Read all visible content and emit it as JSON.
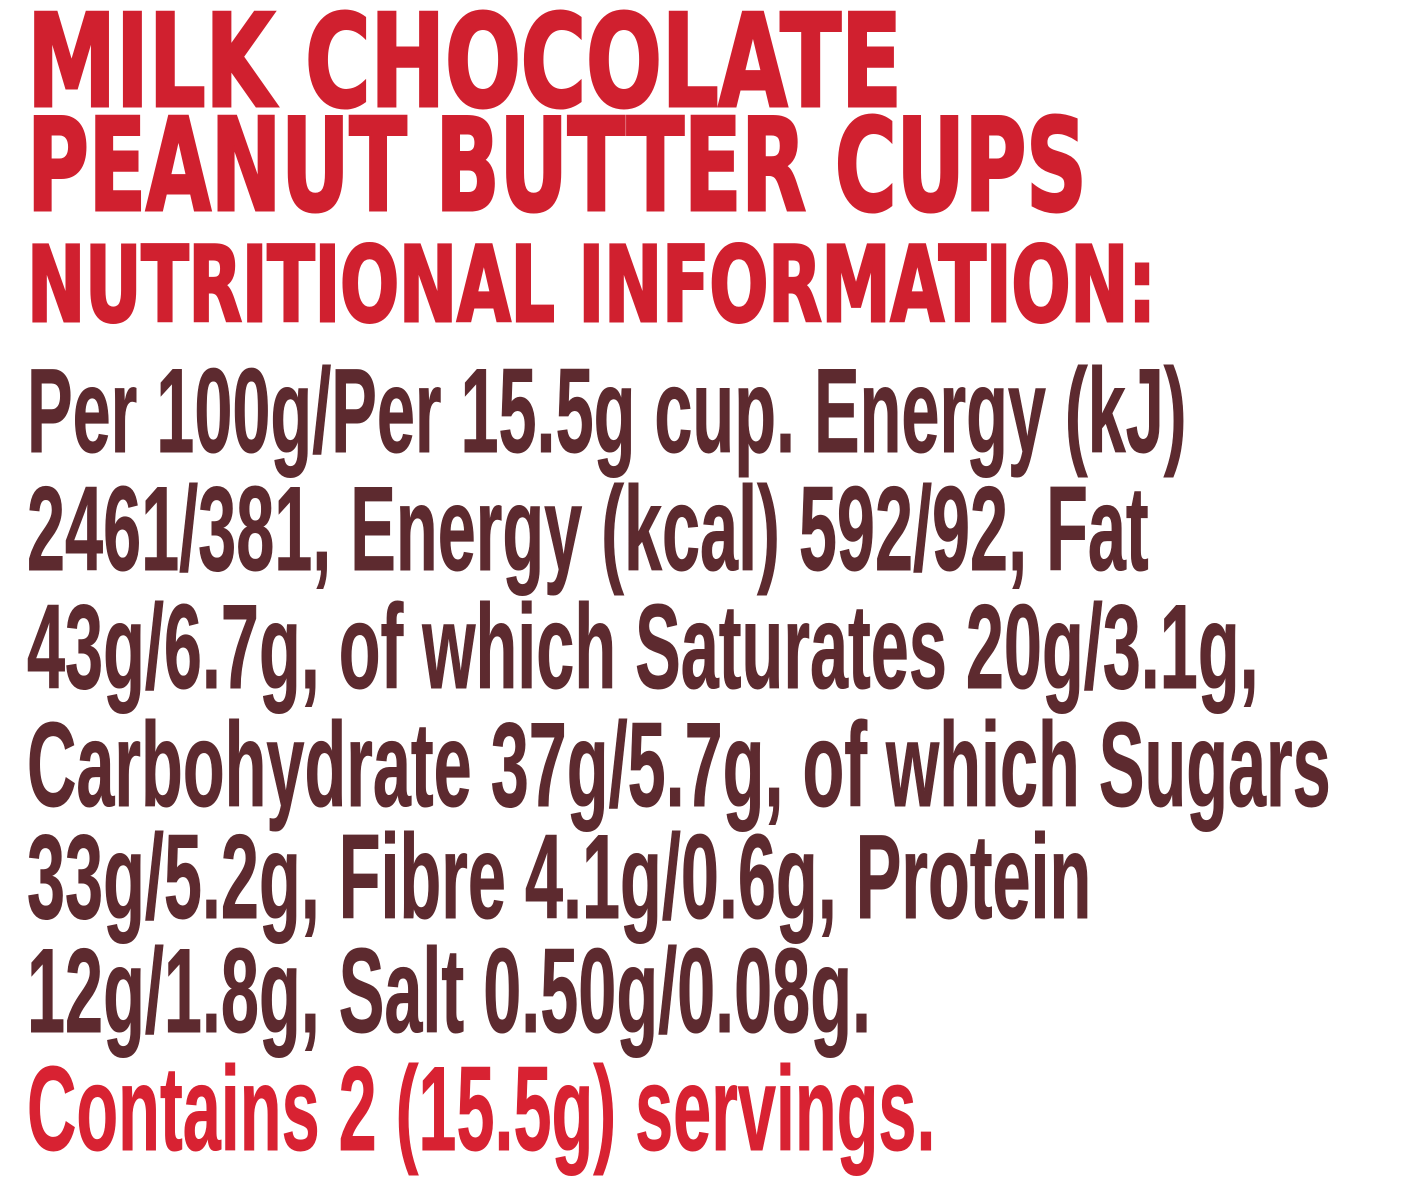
{
  "product": {
    "title_lines": [
      "MILK CHOCOLATE",
      "PEANUT BUTTER CUPS"
    ]
  },
  "section": {
    "heading": "NUTRITIONAL INFORMATION:"
  },
  "nutrition_text": {
    "lines": [
      "Per 100g/Per 15.5g cup. Energy (kJ)",
      "2461/381, Energy (kcal) 592/92, Fat",
      "43g/6.7g, of which Saturates 20g/3.1g,",
      "Carbohydrate 37g/5.7g, of which Sugars",
      "33g/5.2g, Fibre 4.1g/0.6g, Protein",
      "12g/1.8g, Salt 0.50g/0.08g."
    ],
    "full_text": "Per 100g/Per 15.5g cup. Energy (kJ) 2461/381, Energy (kcal) 592/92, Fat 43g/6.7g, of which Saturates 20g/3.1g, Carbohydrate 37g/5.7g, of which Sugars 33g/5.2g, Fibre 4.1g/0.6g, Protein 12g/1.8g, Salt 0.50g/0.08g."
  },
  "servings": {
    "text": "Contains 2 (15.5g) servings."
  },
  "nutrition_facts": {
    "basis_labels": [
      "Per 100g",
      "Per 15.5g cup"
    ],
    "energy_kj": [
      "2461",
      "381"
    ],
    "energy_kcal": [
      "592",
      "92"
    ],
    "fat_g": [
      "43",
      "6.7"
    ],
    "saturates_g": [
      "20",
      "3.1"
    ],
    "carbohydrate_g": [
      "37",
      "5.7"
    ],
    "sugars_g": [
      "33",
      "5.2"
    ],
    "fibre_g": [
      "4.1",
      "0.6"
    ],
    "protein_g": [
      "12",
      "1.8"
    ],
    "salt_g": [
      "0.50",
      "0.08"
    ],
    "servings_count": "2",
    "serving_size": "15.5g"
  },
  "colors": {
    "heading_red": "#D0202F",
    "servings_red": "#D82232",
    "body_brown": "#5D2A2F",
    "background": "#FFFFFF"
  }
}
